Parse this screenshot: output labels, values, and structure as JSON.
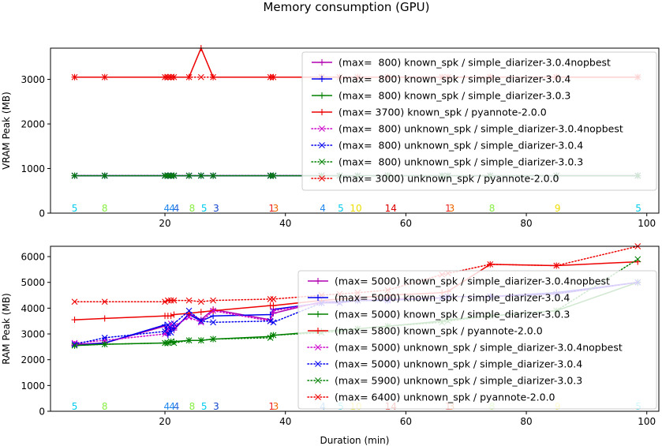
{
  "suptitle": "Memory consumption (GPU)",
  "legend_template": {
    "known": "known_spk",
    "unknown": "unknown_spk"
  },
  "chart_data": [
    {
      "type": "line",
      "ylabel": "VRAM Peak (MB)",
      "xlabel": "",
      "xlim": [
        1,
        102
      ],
      "ylim": [
        0,
        3700
      ],
      "xticks": [
        20,
        40,
        60,
        80,
        100
      ],
      "yticks": [
        0,
        1000,
        2000,
        3000
      ],
      "legend_position": "upper-right",
      "series": [
        {
          "name": "(max=  800) known_spk / simple_diarizer-3.0.4nopbest",
          "color": "#b000b0",
          "style": "solid",
          "marker": "+",
          "x": [
            5,
            10,
            20,
            20.5,
            21,
            21.5,
            24,
            26,
            28,
            37.5,
            38,
            46,
            49,
            52,
            57,
            66,
            67,
            74,
            85,
            98.5
          ],
          "y": [
            840,
            840,
            840,
            840,
            840,
            840,
            840,
            840,
            840,
            840,
            840,
            840,
            840,
            840,
            840,
            840,
            840,
            840,
            840,
            840
          ]
        },
        {
          "name": "(max=  800) known_spk / simple_diarizer-3.0.4",
          "color": "#0000ee",
          "style": "solid",
          "marker": "+",
          "x": [
            5,
            10,
            20,
            20.5,
            21,
            21.5,
            24,
            26,
            28,
            37.5,
            38,
            46,
            49,
            52,
            57,
            66,
            67,
            74,
            85,
            98.5
          ],
          "y": [
            840,
            840,
            840,
            840,
            840,
            840,
            840,
            840,
            840,
            840,
            840,
            840,
            840,
            840,
            840,
            840,
            840,
            840,
            840,
            840
          ]
        },
        {
          "name": "(max=  800) known_spk / simple_diarizer-3.0.3",
          "color": "#008000",
          "style": "solid",
          "marker": "+",
          "x": [
            5,
            10,
            20,
            20.5,
            21,
            21.5,
            24,
            26,
            28,
            37.5,
            38,
            46,
            49,
            52,
            57,
            66,
            67,
            74,
            85,
            98.5
          ],
          "y": [
            840,
            840,
            840,
            840,
            840,
            840,
            840,
            840,
            840,
            840,
            840,
            840,
            840,
            840,
            840,
            840,
            840,
            840,
            840,
            840
          ]
        },
        {
          "name": "(max= 3700) known_spk / pyannote-2.0.0",
          "color": "#ee0000",
          "style": "solid",
          "marker": "+",
          "x": [
            5,
            10,
            20,
            20.5,
            21,
            21.5,
            24,
            26,
            28,
            37.5,
            38,
            46,
            49,
            52,
            57,
            66,
            67,
            74,
            85,
            98.5
          ],
          "y": [
            3050,
            3050,
            3050,
            3050,
            3050,
            3050,
            3050,
            3700,
            3050,
            3050,
            3050,
            3050,
            3050,
            3050,
            3050,
            3050,
            3050,
            3050,
            3050,
            3050
          ]
        },
        {
          "name": "(max=  800) unknown_spk / simple_diarizer-3.0.4nopbest",
          "color": "#cc00cc",
          "style": "dotted",
          "marker": "x",
          "x": [
            5,
            10,
            20,
            20.5,
            21,
            21.5,
            24,
            26,
            28,
            37.5,
            38,
            46,
            49,
            52,
            57,
            66,
            67,
            74,
            85,
            98.5
          ],
          "y": [
            840,
            840,
            840,
            840,
            840,
            840,
            840,
            840,
            840,
            840,
            840,
            840,
            840,
            840,
            840,
            840,
            840,
            840,
            840,
            840
          ]
        },
        {
          "name": "(max=  800) unknown_spk / simple_diarizer-3.0.4",
          "color": "#0000ee",
          "style": "dotted",
          "marker": "x",
          "x": [
            5,
            10,
            20,
            20.5,
            21,
            21.5,
            24,
            26,
            28,
            37.5,
            38,
            46,
            49,
            52,
            57,
            66,
            67,
            74,
            85,
            98.5
          ],
          "y": [
            840,
            840,
            840,
            840,
            840,
            840,
            840,
            840,
            840,
            840,
            840,
            840,
            840,
            840,
            840,
            840,
            840,
            840,
            840,
            840
          ]
        },
        {
          "name": "(max=  800) unknown_spk / simple_diarizer-3.0.3",
          "color": "#008000",
          "style": "dotted",
          "marker": "x",
          "x": [
            5,
            10,
            20,
            20.5,
            21,
            21.5,
            24,
            26,
            28,
            37.5,
            38,
            46,
            49,
            52,
            57,
            66,
            67,
            74,
            85,
            98.5
          ],
          "y": [
            840,
            840,
            840,
            840,
            840,
            840,
            840,
            840,
            840,
            840,
            840,
            840,
            840,
            840,
            840,
            840,
            840,
            840,
            840,
            840
          ]
        },
        {
          "name": "(max= 3000) unknown_spk / pyannote-2.0.0",
          "color": "#ee0000",
          "style": "dotted",
          "marker": "x",
          "x": [
            5,
            10,
            20,
            20.5,
            21,
            21.5,
            24,
            26,
            28,
            37.5,
            38,
            46,
            49,
            52,
            57,
            66,
            67,
            74,
            85,
            98.5
          ],
          "y": [
            3050,
            3050,
            3050,
            3050,
            3050,
            3050,
            3050,
            3050,
            3050,
            3050,
            3050,
            3050,
            3050,
            3050,
            3050,
            3050,
            3050,
            3050,
            3050,
            3050
          ]
        }
      ],
      "annotations": [
        {
          "x": 5,
          "text": "5",
          "color": "#00ccee"
        },
        {
          "x": 10,
          "text": "8",
          "color": "#88ee44"
        },
        {
          "x": 20.3,
          "text": "4",
          "color": "#2288ee"
        },
        {
          "x": 21.2,
          "text": "4",
          "color": "#2288ee"
        },
        {
          "x": 21.9,
          "text": "4",
          "color": "#2266dd"
        },
        {
          "x": 24.5,
          "text": "8",
          "color": "#88ee44"
        },
        {
          "x": 26.5,
          "text": "5",
          "color": "#00ccee"
        },
        {
          "x": 28.5,
          "text": "3",
          "color": "#1144cc"
        },
        {
          "x": 37.7,
          "text": "1",
          "color": "#ee2222"
        },
        {
          "x": 38.4,
          "text": "3",
          "color": "#ee6600"
        },
        {
          "x": 46.2,
          "text": "4",
          "color": "#2288ee"
        },
        {
          "x": 49.2,
          "text": "5",
          "color": "#00ccee"
        },
        {
          "x": 51.7,
          "text": "10",
          "color": "#eedd00"
        },
        {
          "x": 57.5,
          "text": "14",
          "color": "#dd0000"
        },
        {
          "x": 67.0,
          "text": "1",
          "color": "#ee2222"
        },
        {
          "x": 67.6,
          "text": "3",
          "color": "#ee6600"
        },
        {
          "x": 74.3,
          "text": "8",
          "color": "#88ee44"
        },
        {
          "x": 85.2,
          "text": "9",
          "color": "#eedd00"
        },
        {
          "x": 98.6,
          "text": "5",
          "color": "#00ccee"
        }
      ]
    },
    {
      "type": "line",
      "ylabel": "RAM Peak (MB)",
      "xlabel": "Duration (min)",
      "xlim": [
        1,
        102
      ],
      "ylim": [
        0,
        6400
      ],
      "xticks": [
        20,
        40,
        60,
        80,
        100
      ],
      "yticks": [
        0,
        1000,
        2000,
        3000,
        4000,
        5000,
        6000
      ],
      "legend_position": "center-right",
      "series": [
        {
          "name": "(max= 5000) known_spk / simple_diarizer-3.0.4nopbest",
          "color": "#b000b0",
          "style": "solid",
          "marker": "+",
          "x": [
            5,
            10,
            20,
            20.5,
            21,
            21.5,
            24,
            26,
            28,
            37.5,
            38,
            46,
            49,
            52,
            57,
            66,
            67,
            74,
            85,
            98.5
          ],
          "y": [
            2600,
            2650,
            3300,
            3000,
            3200,
            3150,
            3800,
            3550,
            3950,
            3550,
            3800,
            4250,
            4250,
            4300,
            4350,
            4400,
            4450,
            4450,
            4600,
            5000
          ]
        },
        {
          "name": "(max= 5000) known_spk / simple_diarizer-3.0.4",
          "color": "#0000ee",
          "style": "solid",
          "marker": "+",
          "x": [
            5,
            10,
            20,
            20.5,
            21,
            21.5,
            24,
            26,
            28,
            37.5,
            38,
            46,
            49,
            52,
            57,
            66,
            67,
            74,
            85,
            98.5
          ],
          "y": [
            2550,
            2650,
            3350,
            2950,
            3250,
            3200,
            3750,
            3500,
            3700,
            3750,
            3950,
            4200,
            4250,
            4300,
            4300,
            4400,
            4450,
            4450,
            4600,
            5000
          ]
        },
        {
          "name": "(max= 5000) known_spk / simple_diarizer-3.0.3",
          "color": "#008000",
          "style": "solid",
          "marker": "+",
          "x": [
            5,
            10,
            20,
            20.5,
            21,
            21.5,
            24,
            26,
            28,
            37.5,
            38,
            46,
            49,
            52,
            57,
            66,
            67,
            74,
            85,
            98.5
          ],
          "y": [
            2550,
            2600,
            2650,
            2650,
            2700,
            2700,
            2750,
            2750,
            2800,
            2900,
            2950,
            3100,
            3150,
            3200,
            3300,
            3500,
            3550,
            3700,
            3900,
            5000
          ]
        },
        {
          "name": "(max= 5800) known_spk / pyannote-2.0.0",
          "color": "#ee0000",
          "style": "solid",
          "marker": "+",
          "x": [
            5,
            10,
            20,
            20.5,
            21,
            21.5,
            24,
            26,
            28,
            37.5,
            38,
            46,
            49,
            52,
            57,
            66,
            67,
            74,
            85,
            98.5
          ],
          "y": [
            3550,
            3600,
            3700,
            3700,
            3700,
            3750,
            3800,
            3850,
            3900,
            4100,
            4100,
            4300,
            4350,
            4400,
            4500,
            4600,
            4650,
            5700,
            5650,
            5800
          ]
        },
        {
          "name": "(max= 5000) unknown_spk / simple_diarizer-3.0.4nopbest",
          "color": "#cc00cc",
          "style": "dotted",
          "marker": "x",
          "x": [
            5,
            10,
            20,
            20.5,
            21,
            21.5,
            24,
            26,
            28,
            37.5,
            38,
            46,
            49,
            52,
            57,
            66,
            67,
            74,
            85,
            98.5
          ],
          "y": [
            2650,
            2750,
            3000,
            3200,
            3400,
            3300,
            3650,
            3450,
            3900,
            3500,
            3900,
            4200,
            4200,
            4300,
            4350,
            4400,
            4450,
            4450,
            4550,
            5000
          ]
        },
        {
          "name": "(max= 5000) unknown_spk / simple_diarizer-3.0.4",
          "color": "#0000ee",
          "style": "dotted",
          "marker": "x",
          "x": [
            5,
            10,
            20,
            20.5,
            21,
            21.5,
            24,
            26,
            28,
            37.5,
            38,
            46,
            49,
            52,
            57,
            66,
            67,
            74,
            85,
            98.5
          ],
          "y": [
            2600,
            2850,
            3100,
            3350,
            3050,
            3400,
            3900,
            3500,
            3450,
            3500,
            3450,
            4200,
            4200,
            4300,
            4300,
            4400,
            4450,
            4450,
            4550,
            5000
          ]
        },
        {
          "name": "(max= 5900) unknown_spk / simple_diarizer-3.0.3",
          "color": "#008000",
          "style": "dotted",
          "marker": "x",
          "x": [
            5,
            10,
            20,
            20.5,
            21,
            21.5,
            24,
            26,
            28,
            37.5,
            38,
            46,
            49,
            52,
            57,
            66,
            67,
            74,
            85,
            98.5
          ],
          "y": [
            2550,
            2600,
            2650,
            2650,
            2700,
            2650,
            2750,
            2750,
            2800,
            2850,
            2950,
            3050,
            3100,
            3200,
            3300,
            3450,
            3500,
            3700,
            3900,
            5900
          ]
        },
        {
          "name": "(max= 6400) unknown_spk / pyannote-2.0.0",
          "color": "#ee0000",
          "style": "dotted",
          "marker": "x",
          "x": [
            5,
            10,
            20,
            20.5,
            21,
            21.5,
            24,
            26,
            28,
            37.5,
            38,
            46,
            49,
            52,
            57,
            66,
            67,
            74,
            85,
            98.5
          ],
          "y": [
            4250,
            4250,
            4250,
            4300,
            4300,
            4300,
            4300,
            4250,
            4300,
            4350,
            4350,
            4500,
            4550,
            4600,
            4700,
            5300,
            5350,
            5700,
            5650,
            6400
          ]
        }
      ],
      "annotations": [
        {
          "x": 5,
          "text": "5",
          "color": "#00ccee"
        },
        {
          "x": 10,
          "text": "8",
          "color": "#88ee44"
        },
        {
          "x": 20.3,
          "text": "4",
          "color": "#2288ee"
        },
        {
          "x": 21.2,
          "text": "4",
          "color": "#2288ee"
        },
        {
          "x": 21.9,
          "text": "4",
          "color": "#2266dd"
        },
        {
          "x": 24.5,
          "text": "8",
          "color": "#88ee44"
        },
        {
          "x": 26.5,
          "text": "5",
          "color": "#00ccee"
        },
        {
          "x": 28.5,
          "text": "3",
          "color": "#1144cc"
        },
        {
          "x": 37.7,
          "text": "1",
          "color": "#ee2222"
        },
        {
          "x": 38.4,
          "text": "3",
          "color": "#ee6600"
        },
        {
          "x": 46.2,
          "text": "4",
          "color": "#2288ee"
        },
        {
          "x": 49.2,
          "text": "5",
          "color": "#00ccee"
        },
        {
          "x": 51.7,
          "text": "10",
          "color": "#eedd00"
        },
        {
          "x": 57.5,
          "text": "14",
          "color": "#dd0000"
        },
        {
          "x": 67.0,
          "text": "1",
          "color": "#ee2222"
        },
        {
          "x": 67.6,
          "text": "3",
          "color": "#ee6600"
        },
        {
          "x": 74.3,
          "text": "8",
          "color": "#88ee44"
        },
        {
          "x": 85.2,
          "text": "9",
          "color": "#eedd00"
        },
        {
          "x": 98.6,
          "text": "5",
          "color": "#00ccee"
        }
      ]
    }
  ]
}
